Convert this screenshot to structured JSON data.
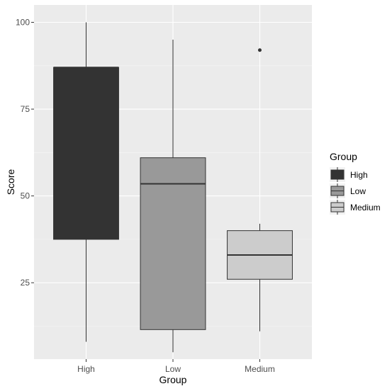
{
  "chart_data": {
    "type": "box",
    "xlabel": "Group",
    "ylabel": "Score",
    "categories": [
      "High",
      "Low",
      "Medium"
    ],
    "ylim": [
      3,
      105
    ],
    "yticks": [
      25,
      50,
      75,
      100
    ],
    "grid": true,
    "legend": {
      "title": "Group",
      "position": "right",
      "entries": [
        "High",
        "Low",
        "Medium"
      ]
    },
    "series": [
      {
        "name": "High",
        "min": 8,
        "q1": 37.5,
        "median": 87,
        "q3": 87,
        "max": 100,
        "outliers": [],
        "fill": "#333333"
      },
      {
        "name": "Low",
        "min": 5,
        "q1": 11.5,
        "median": 53.5,
        "q3": 61,
        "max": 95,
        "outliers": [],
        "fill": "#999999"
      },
      {
        "name": "Medium",
        "min": 11,
        "q1": 26,
        "median": 33,
        "q3": 40,
        "max": 42,
        "outliers": [
          92
        ],
        "fill": "#cccccc"
      }
    ]
  }
}
